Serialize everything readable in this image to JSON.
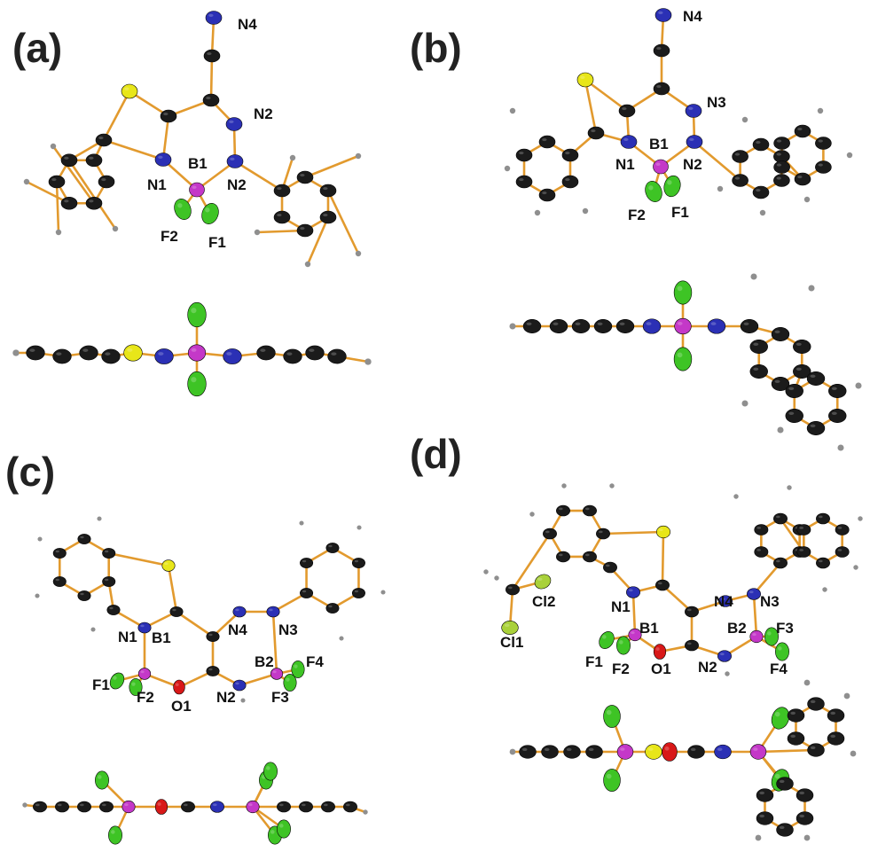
{
  "colors": {
    "bond": "#e29a2e",
    "carbon": "#1b1b1b",
    "hydrogen": "#8f8f8f",
    "nitrogen": "#2b30b5",
    "sulfur": "#e8e619",
    "boron": "#c438c8",
    "fluorine": "#3ec425",
    "oxygen": "#d81818",
    "chlorine": "#a9d13a"
  },
  "panels": [
    {
      "id": "a",
      "label": "(a)",
      "atom_labels": [
        "N4",
        "N2",
        "B1",
        "N1",
        "N2",
        "F2",
        "F1"
      ]
    },
    {
      "id": "b",
      "label": "(b)",
      "atom_labels": [
        "N4",
        "N3",
        "B1",
        "N1",
        "N2",
        "F2",
        "F1"
      ]
    },
    {
      "id": "c",
      "label": "(c)",
      "atom_labels": [
        "N1",
        "B1",
        "F1",
        "F2",
        "O1",
        "N2",
        "N4",
        "N3",
        "B2",
        "F4",
        "F3"
      ]
    },
    {
      "id": "d",
      "label": "(d)",
      "atom_labels": [
        "Cl2",
        "Cl1",
        "N1",
        "B1",
        "F1",
        "F2",
        "O1",
        "N2",
        "N4",
        "N3",
        "B2",
        "F3",
        "F4"
      ]
    }
  ]
}
